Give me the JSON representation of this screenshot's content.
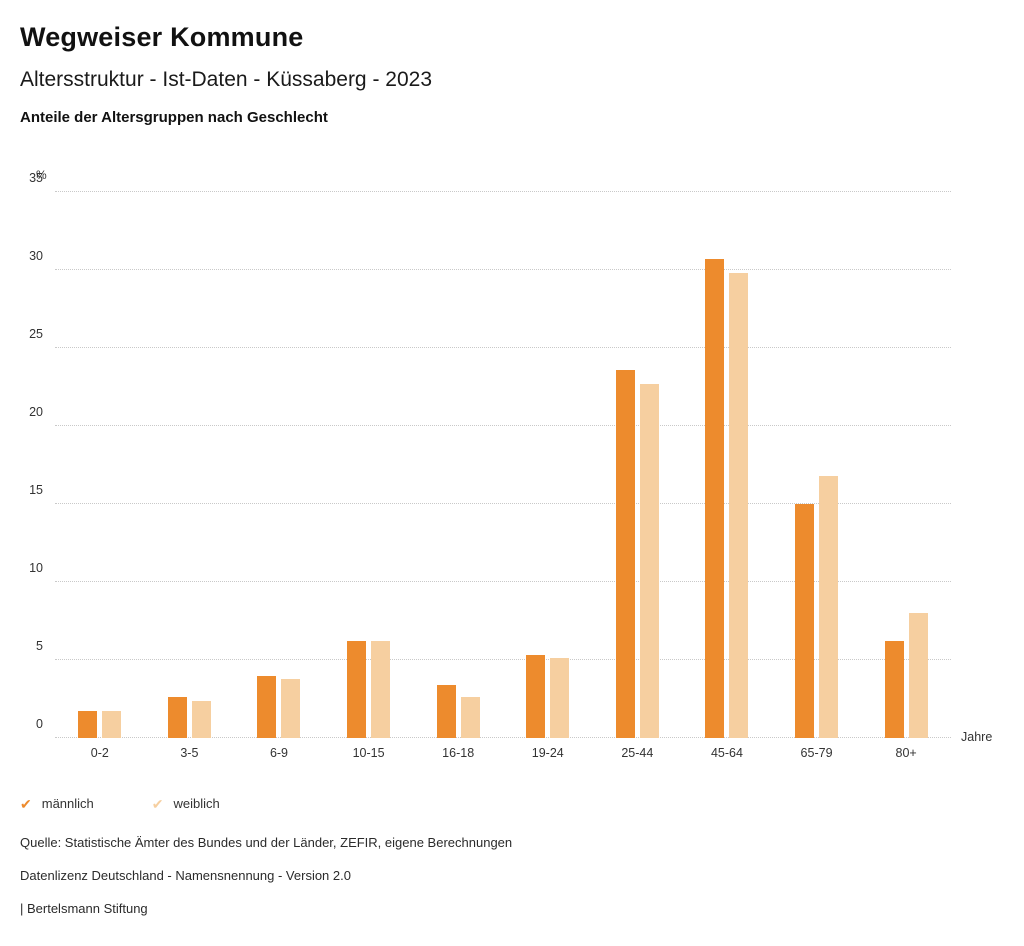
{
  "page": {
    "title": "Wegweiser Kommune",
    "subtitle": "Altersstruktur - Ist-Daten - Küssaberg - 2023",
    "heading": "Anteile der Altersgruppen nach Geschlecht"
  },
  "chart_data": {
    "type": "bar",
    "title": "Anteile der Altersgruppen nach Geschlecht",
    "y_unit_label": "%",
    "x_unit_label": "Jahre",
    "categories": [
      "0-2",
      "3-5",
      "6-9",
      "10-15",
      "16-18",
      "19-24",
      "25-44",
      "45-64",
      "65-79",
      "80+"
    ],
    "series": [
      {
        "name": "männlich",
        "color": "#ED8B2D",
        "values": [
          1.7,
          2.6,
          4.0,
          6.2,
          3.4,
          5.3,
          23.6,
          30.7,
          15.0,
          6.2
        ]
      },
      {
        "name": "weiblich",
        "color": "#F6CFA0",
        "values": [
          1.7,
          2.4,
          3.8,
          6.2,
          2.6,
          5.1,
          22.7,
          29.8,
          16.8,
          8.0
        ]
      }
    ],
    "ylim": [
      0,
      35
    ],
    "ytick_step": 5,
    "grid": "horizontal-dotted",
    "legend_position": "bottom-left"
  },
  "footer": {
    "source": "Quelle: Statistische Ämter des Bundes und der Länder, ZEFIR, eigene Berechnungen",
    "license": "Datenlizenz Deutschland - Namensnennung - Version 2.0",
    "attribution": "| Bertelsmann Stiftung"
  }
}
